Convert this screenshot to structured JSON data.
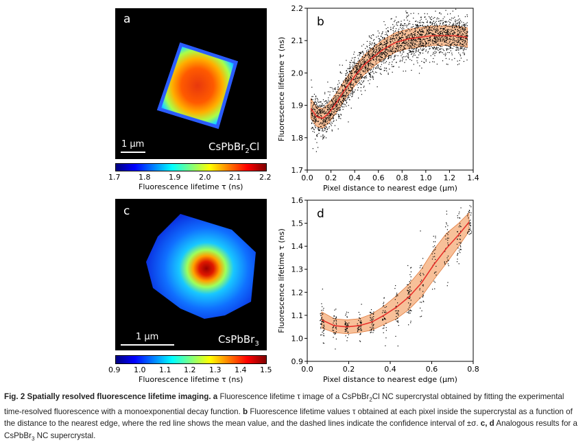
{
  "figure": {
    "panel_a": {
      "letter": "a",
      "material_base": "CsPbBr",
      "material_sub": "2",
      "material_tail": "Cl",
      "scale_label": "1 µm",
      "colorbar_ticks": [
        "1.7",
        "1.8",
        "1.9",
        "2.0",
        "2.1",
        "2.2"
      ],
      "colorbar_label": "Fluorescence lifetime τ (ns)"
    },
    "panel_c": {
      "letter": "c",
      "material_base": "CsPbBr",
      "material_sub": "3",
      "scale_label": "1 µm",
      "colorbar_ticks": [
        "0.9",
        "1.0",
        "1.1",
        "1.2",
        "1.3",
        "1.4",
        "1.5"
      ],
      "colorbar_label": "Fluorescence lifetime τ (ns)"
    },
    "panel_b": {
      "letter": "b"
    },
    "panel_d": {
      "letter": "d"
    }
  },
  "chart_data": [
    {
      "type": "scatter",
      "panel": "b",
      "xlabel": "Pixel distance to nearest edge (µm)",
      "ylabel": "Fluorescence lifetime τ (ns)",
      "xlim": [
        0.0,
        1.4
      ],
      "ylim": [
        1.7,
        2.2
      ],
      "xticks": [
        "0.0",
        "0.2",
        "0.4",
        "0.6",
        "0.8",
        "1.0",
        "1.2",
        "1.4"
      ],
      "yticks": [
        "1.7",
        "1.8",
        "1.9",
        "2.0",
        "2.1",
        "2.2"
      ],
      "colors": {
        "points": "#000000",
        "mean": "#e8302a",
        "band": "#f4a56e"
      },
      "mean": {
        "x": [
          0.03,
          0.08,
          0.13,
          0.18,
          0.25,
          0.32,
          0.4,
          0.48,
          0.56,
          0.65,
          0.75,
          0.85,
          0.95,
          1.05,
          1.15,
          1.25,
          1.35
        ],
        "y": [
          1.89,
          1.865,
          1.86,
          1.875,
          1.91,
          1.95,
          1.99,
          2.025,
          2.05,
          2.075,
          2.095,
          2.105,
          2.11,
          2.115,
          2.115,
          2.115,
          2.11
        ]
      },
      "std": 0.03
    },
    {
      "type": "scatter",
      "panel": "d",
      "xlabel": "Pixel distance to nearest edge (µm)",
      "ylabel": "Fluorescence lifetime τ (ns)",
      "xlim": [
        0.0,
        0.8
      ],
      "ylim": [
        0.9,
        1.6
      ],
      "xticks": [
        "0.0",
        "0.2",
        "0.4",
        "0.6",
        "0.8"
      ],
      "yticks": [
        "0.9",
        "1.0",
        "1.1",
        "1.2",
        "1.3",
        "1.4",
        "1.5",
        "1.6"
      ],
      "colors": {
        "points": "#000000",
        "mean": "#e8302a",
        "band": "#f4a56e"
      },
      "mean": {
        "x": [
          0.07,
          0.13,
          0.19,
          0.25,
          0.31,
          0.37,
          0.43,
          0.49,
          0.55,
          0.61,
          0.67,
          0.73,
          0.78
        ],
        "y": [
          1.08,
          1.055,
          1.05,
          1.055,
          1.07,
          1.1,
          1.135,
          1.18,
          1.24,
          1.32,
          1.39,
          1.45,
          1.505
        ]
      },
      "std": [
        0.035,
        0.03,
        0.03,
        0.03,
        0.035,
        0.04,
        0.05,
        0.055,
        0.06,
        0.065,
        0.065,
        0.05,
        0.04
      ]
    }
  ],
  "caption": {
    "fig_label": "Fig. 2 Spatially resolved fluorescence lifetime imaging.",
    "a_label": "a",
    "a_text_1": " Fluorescence lifetime τ image of a CsPbBr",
    "a_sub": "2",
    "a_text_2": "Cl NC supercrystal obtained by fitting the experimental time-resolved fluorescence with a monoexponential decay function. ",
    "b_label": "b",
    "b_text": " Fluorescence lifetime values τ obtained at each pixel inside the supercrystal as a function of the distance to the nearest edge, where the red line shows the mean value, and the dashed lines indicate the confidence interval of ±σ. ",
    "cd_label": "c, d",
    "cd_text_1": " Analogous results for a CsPbBr",
    "cd_sub": "3",
    "cd_text_2": " NC supercrystal."
  }
}
